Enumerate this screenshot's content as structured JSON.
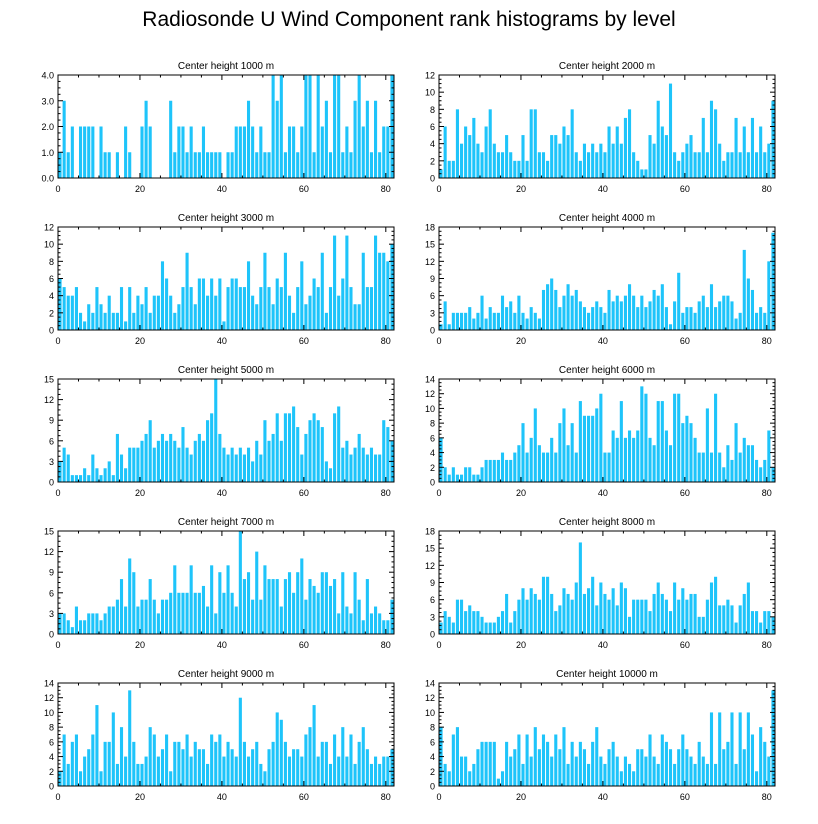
{
  "title": "Radiosonde U Wind Component rank histograms by level",
  "colors": {
    "bar": "#1EC4FA",
    "axis": "#000000",
    "background": "#ffffff"
  },
  "chart_data": [
    {
      "type": "bar",
      "title": "Center height 1000 m",
      "xlim": [
        0,
        82
      ],
      "ylim": [
        0,
        4
      ],
      "yticks": [
        0,
        1,
        2,
        3,
        4
      ],
      "ytick_labels": [
        "0.0",
        "1.0",
        "2.0",
        "3.0",
        "4.0"
      ],
      "xticks": [
        0,
        20,
        40,
        60,
        80
      ],
      "values": [
        1,
        3,
        1,
        2,
        0,
        2,
        2,
        2,
        2,
        0,
        2,
        1,
        1,
        0,
        1,
        0,
        2,
        1,
        0,
        0,
        2,
        3,
        2,
        0,
        0,
        0,
        0,
        3,
        1,
        2,
        2,
        1,
        2,
        1,
        1,
        2,
        1,
        1,
        1,
        1,
        0,
        1,
        1,
        2,
        2,
        2,
        3,
        2,
        1,
        2,
        1,
        1,
        4,
        3,
        4,
        1,
        2,
        2,
        1,
        2,
        4,
        4,
        1,
        4,
        2,
        3,
        1,
        4,
        4,
        1,
        2,
        1,
        3,
        4,
        2,
        3,
        1,
        3,
        1,
        2,
        2,
        4
      ]
    },
    {
      "type": "bar",
      "title": "Center height 2000 m",
      "xlim": [
        0,
        82
      ],
      "ylim": [
        0,
        12
      ],
      "yticks": [
        0,
        2,
        4,
        6,
        8,
        10,
        12
      ],
      "ytick_labels": [
        "0",
        "2",
        "4",
        "6",
        "8",
        "10",
        "12"
      ],
      "xticks": [
        0,
        20,
        40,
        60,
        80
      ],
      "values": [
        1,
        6,
        2,
        2,
        8,
        4,
        6,
        5,
        7,
        4,
        3,
        6,
        8,
        4,
        3,
        3,
        5,
        3,
        2,
        2,
        5,
        2,
        8,
        8,
        3,
        3,
        2,
        5,
        5,
        4,
        6,
        5,
        8,
        3,
        2,
        4,
        3,
        4,
        3,
        4,
        3,
        6,
        4,
        6,
        4,
        7,
        8,
        3,
        2,
        1,
        1,
        5,
        4,
        9,
        6,
        5,
        11,
        3,
        2,
        3,
        4,
        5,
        3,
        3,
        7,
        3,
        9,
        8,
        4,
        2,
        3,
        3,
        7,
        3,
        6,
        3,
        7,
        3,
        6,
        3,
        4,
        9
      ]
    },
    {
      "type": "bar",
      "title": "Center height 3000 m",
      "xlim": [
        0,
        82
      ],
      "ylim": [
        0,
        12
      ],
      "yticks": [
        0,
        2,
        4,
        6,
        8,
        10,
        12
      ],
      "ytick_labels": [
        "0",
        "2",
        "4",
        "6",
        "8",
        "10",
        "12"
      ],
      "xticks": [
        0,
        20,
        40,
        60,
        80
      ],
      "values": [
        6,
        5,
        4,
        4,
        5,
        2,
        1,
        3,
        2,
        5,
        3,
        2,
        4,
        2,
        2,
        5,
        1,
        5,
        2,
        4,
        3,
        5,
        2,
        4,
        4,
        8,
        6,
        4,
        2,
        3,
        5,
        9,
        5,
        3,
        6,
        6,
        4,
        6,
        4,
        6,
        1,
        5,
        6,
        6,
        5,
        5,
        8,
        4,
        3,
        5,
        9,
        5,
        3,
        6,
        5,
        9,
        4,
        2,
        5,
        8,
        3,
        4,
        6,
        5,
        9,
        2,
        5,
        11,
        4,
        6,
        11,
        5,
        3,
        3,
        9,
        5,
        5,
        11,
        9,
        9,
        8,
        10
      ]
    },
    {
      "type": "bar",
      "title": "Center height 4000 m",
      "xlim": [
        0,
        82
      ],
      "ylim": [
        0,
        18
      ],
      "yticks": [
        0,
        3,
        6,
        9,
        12,
        15,
        18
      ],
      "ytick_labels": [
        "0",
        "3",
        "6",
        "9",
        "12",
        "15",
        "18"
      ],
      "xticks": [
        0,
        20,
        40,
        60,
        80
      ],
      "values": [
        1,
        5,
        1,
        3,
        3,
        3,
        3,
        4,
        2,
        3,
        6,
        2,
        4,
        3,
        3,
        6,
        4,
        5,
        3,
        6,
        3,
        2,
        4,
        3,
        2,
        7,
        8,
        9,
        7,
        4,
        6,
        8,
        6,
        7,
        5,
        4,
        3,
        4,
        5,
        4,
        3,
        7,
        5,
        6,
        5,
        6,
        8,
        6,
        4,
        6,
        4,
        5,
        7,
        6,
        8,
        4,
        1,
        5,
        10,
        3,
        4,
        4,
        3,
        5,
        6,
        4,
        8,
        4,
        5,
        6,
        6,
        5,
        2,
        3,
        14,
        9,
        7,
        3,
        4,
        3,
        12,
        17
      ]
    },
    {
      "type": "bar",
      "title": "Center height 5000 m",
      "xlim": [
        0,
        82
      ],
      "ylim": [
        0,
        15
      ],
      "yticks": [
        0,
        3,
        6,
        9,
        12,
        15
      ],
      "ytick_labels": [
        "0",
        "3",
        "6",
        "9",
        "12",
        "15"
      ],
      "xticks": [
        0,
        20,
        40,
        60,
        80
      ],
      "values": [
        3,
        5,
        4,
        1,
        1,
        1,
        2,
        1,
        4,
        2,
        1,
        2,
        3,
        1,
        7,
        4,
        2,
        5,
        5,
        5,
        6,
        7,
        9,
        5,
        6,
        7,
        6,
        7,
        6,
        5,
        8,
        5,
        4,
        6,
        7,
        6,
        9,
        10,
        15,
        7,
        5,
        4,
        5,
        4,
        5,
        4,
        5,
        3,
        6,
        4,
        9,
        6,
        7,
        10,
        6,
        10,
        10,
        11,
        8,
        4,
        7,
        9,
        10,
        9,
        8,
        3,
        2,
        10,
        11,
        5,
        6,
        4,
        5,
        7,
        5,
        4,
        5,
        4,
        4,
        9,
        8,
        6
      ]
    },
    {
      "type": "bar",
      "title": "Center height 6000 m",
      "xlim": [
        0,
        82
      ],
      "ylim": [
        0,
        14
      ],
      "yticks": [
        0,
        2,
        4,
        6,
        8,
        10,
        12,
        14
      ],
      "ytick_labels": [
        "0",
        "2",
        "4",
        "6",
        "8",
        "10",
        "12",
        "14"
      ],
      "xticks": [
        0,
        20,
        40,
        60,
        80
      ],
      "values": [
        6,
        2,
        1,
        2,
        1,
        1,
        2,
        2,
        1,
        1,
        2,
        3,
        3,
        3,
        3,
        4,
        3,
        3,
        4,
        5,
        8,
        4,
        6,
        10,
        5,
        4,
        4,
        6,
        4,
        8,
        10,
        5,
        8,
        4,
        11,
        9,
        9,
        9,
        10,
        12,
        4,
        4,
        7,
        6,
        11,
        6,
        7,
        6,
        7,
        13,
        12,
        6,
        5,
        11,
        11,
        7,
        5,
        12,
        12,
        8,
        9,
        8,
        6,
        4,
        4,
        10,
        4,
        12,
        4,
        2,
        5,
        3,
        8,
        4,
        6,
        5,
        5,
        3,
        2,
        3,
        7,
        2
      ]
    },
    {
      "type": "bar",
      "title": "Center height 7000 m",
      "xlim": [
        0,
        82
      ],
      "ylim": [
        0,
        15
      ],
      "yticks": [
        0,
        3,
        6,
        9,
        12,
        15
      ],
      "ytick_labels": [
        "0",
        "3",
        "6",
        "9",
        "12",
        "15"
      ],
      "xticks": [
        0,
        20,
        40,
        60,
        80
      ],
      "values": [
        3,
        3,
        2,
        1,
        4,
        2,
        2,
        3,
        3,
        3,
        2,
        3,
        4,
        4,
        5,
        8,
        4,
        11,
        9,
        4,
        5,
        5,
        8,
        5,
        3,
        5,
        5,
        6,
        10,
        6,
        6,
        6,
        10,
        6,
        6,
        7,
        4,
        10,
        3,
        9,
        6,
        10,
        6,
        4,
        15,
        8,
        9,
        5,
        12,
        5,
        10,
        8,
        8,
        8,
        4,
        8,
        9,
        6,
        9,
        11,
        5,
        8,
        7,
        6,
        9,
        9,
        7,
        8,
        3,
        9,
        4,
        3,
        9,
        5,
        2,
        8,
        3,
        4,
        3,
        2,
        2,
        5
      ]
    },
    {
      "type": "bar",
      "title": "Center height 8000 m",
      "xlim": [
        0,
        82
      ],
      "ylim": [
        0,
        18
      ],
      "yticks": [
        0,
        3,
        6,
        9,
        12,
        15,
        18
      ],
      "ytick_labels": [
        "0",
        "3",
        "6",
        "9",
        "12",
        "15",
        "18"
      ],
      "xticks": [
        0,
        20,
        40,
        60,
        80
      ],
      "values": [
        2,
        4,
        3,
        2,
        6,
        6,
        4,
        5,
        4,
        4,
        3,
        2,
        2,
        2,
        3,
        4,
        7,
        2,
        4,
        6,
        8,
        6,
        8,
        7,
        6,
        10,
        10,
        7,
        4,
        5,
        8,
        7,
        6,
        9,
        16,
        7,
        8,
        10,
        5,
        9,
        7,
        6,
        8,
        5,
        9,
        8,
        3,
        6,
        6,
        6,
        6,
        4,
        7,
        9,
        7,
        6,
        4,
        9,
        6,
        8,
        6,
        7,
        7,
        3,
        3,
        6,
        9,
        10,
        5,
        5,
        6,
        5,
        2,
        5,
        7,
        9,
        4,
        4,
        2,
        4,
        4,
        3
      ]
    },
    {
      "type": "bar",
      "title": "Center height 9000 m",
      "xlim": [
        0,
        82
      ],
      "ylim": [
        0,
        14
      ],
      "yticks": [
        0,
        2,
        4,
        6,
        8,
        10,
        12,
        14
      ],
      "ytick_labels": [
        "0",
        "2",
        "4",
        "6",
        "8",
        "10",
        "12",
        "14"
      ],
      "xticks": [
        0,
        20,
        40,
        60,
        80
      ],
      "values": [
        2,
        7,
        3,
        6,
        7,
        2,
        4,
        5,
        7,
        11,
        2,
        6,
        6,
        10,
        3,
        8,
        4,
        13,
        6,
        3,
        3,
        4,
        8,
        7,
        4,
        5,
        7,
        2,
        6,
        6,
        5,
        7,
        4,
        6,
        5,
        5,
        3,
        7,
        6,
        7,
        4,
        6,
        5,
        4,
        12,
        6,
        4,
        5,
        6,
        3,
        2,
        5,
        6,
        10,
        9,
        6,
        4,
        5,
        5,
        4,
        7,
        8,
        11,
        4,
        6,
        6,
        3,
        7,
        4,
        8,
        4,
        7,
        3,
        6,
        8,
        5,
        3,
        4,
        3,
        4,
        4,
        5
      ]
    },
    {
      "type": "bar",
      "title": "Center height 10000 m",
      "xlim": [
        0,
        82
      ],
      "ylim": [
        0,
        14
      ],
      "yticks": [
        0,
        2,
        4,
        6,
        8,
        10,
        12,
        14
      ],
      "ytick_labels": [
        "0",
        "2",
        "4",
        "6",
        "8",
        "10",
        "12",
        "14"
      ],
      "xticks": [
        0,
        20,
        40,
        60,
        80
      ],
      "values": [
        8,
        3,
        2,
        7,
        8,
        4,
        4,
        2,
        3,
        5,
        6,
        6,
        6,
        6,
        1,
        2,
        6,
        4,
        5,
        7,
        3,
        7,
        4,
        8,
        5,
        7,
        6,
        4,
        7,
        5,
        8,
        3,
        6,
        4,
        6,
        5,
        3,
        6,
        8,
        4,
        3,
        5,
        6,
        4,
        2,
        4,
        3,
        2,
        5,
        5,
        4,
        7,
        4,
        3,
        7,
        6,
        5,
        3,
        5,
        7,
        5,
        4,
        3,
        6,
        4,
        3,
        10,
        3,
        10,
        5,
        6,
        10,
        3,
        10,
        5,
        10,
        7,
        2,
        8,
        6,
        4,
        13
      ]
    }
  ]
}
